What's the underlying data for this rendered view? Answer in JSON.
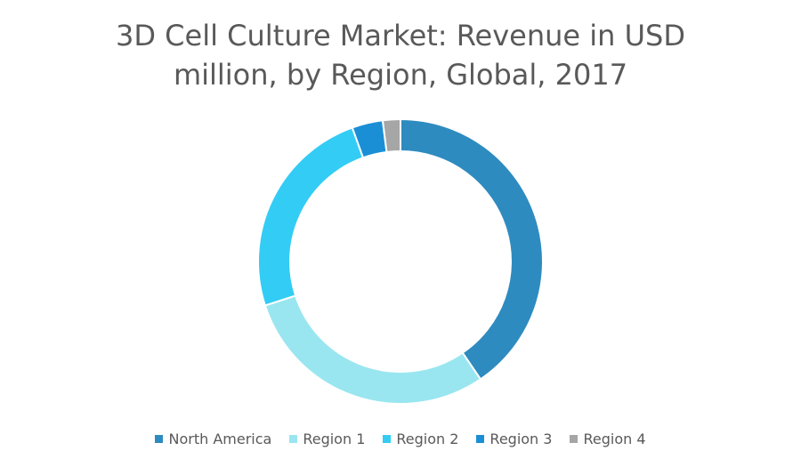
{
  "chart_data": {
    "type": "pie",
    "variant": "donut",
    "title_lines": [
      "3D Cell Culture Market: Revenue in USD",
      "million, by Region, Global, 2017"
    ],
    "categories": [
      "North America",
      "Region 1",
      "Region 2",
      "Region 3",
      "Region 4"
    ],
    "values": [
      40.5,
      29.5,
      24.5,
      3.5,
      2.0
    ],
    "colors": [
      "#2E8BC0",
      "#99E6F0",
      "#33CCF5",
      "#1A8FD6",
      "#A6A6A6"
    ],
    "legend_position": "bottom"
  }
}
